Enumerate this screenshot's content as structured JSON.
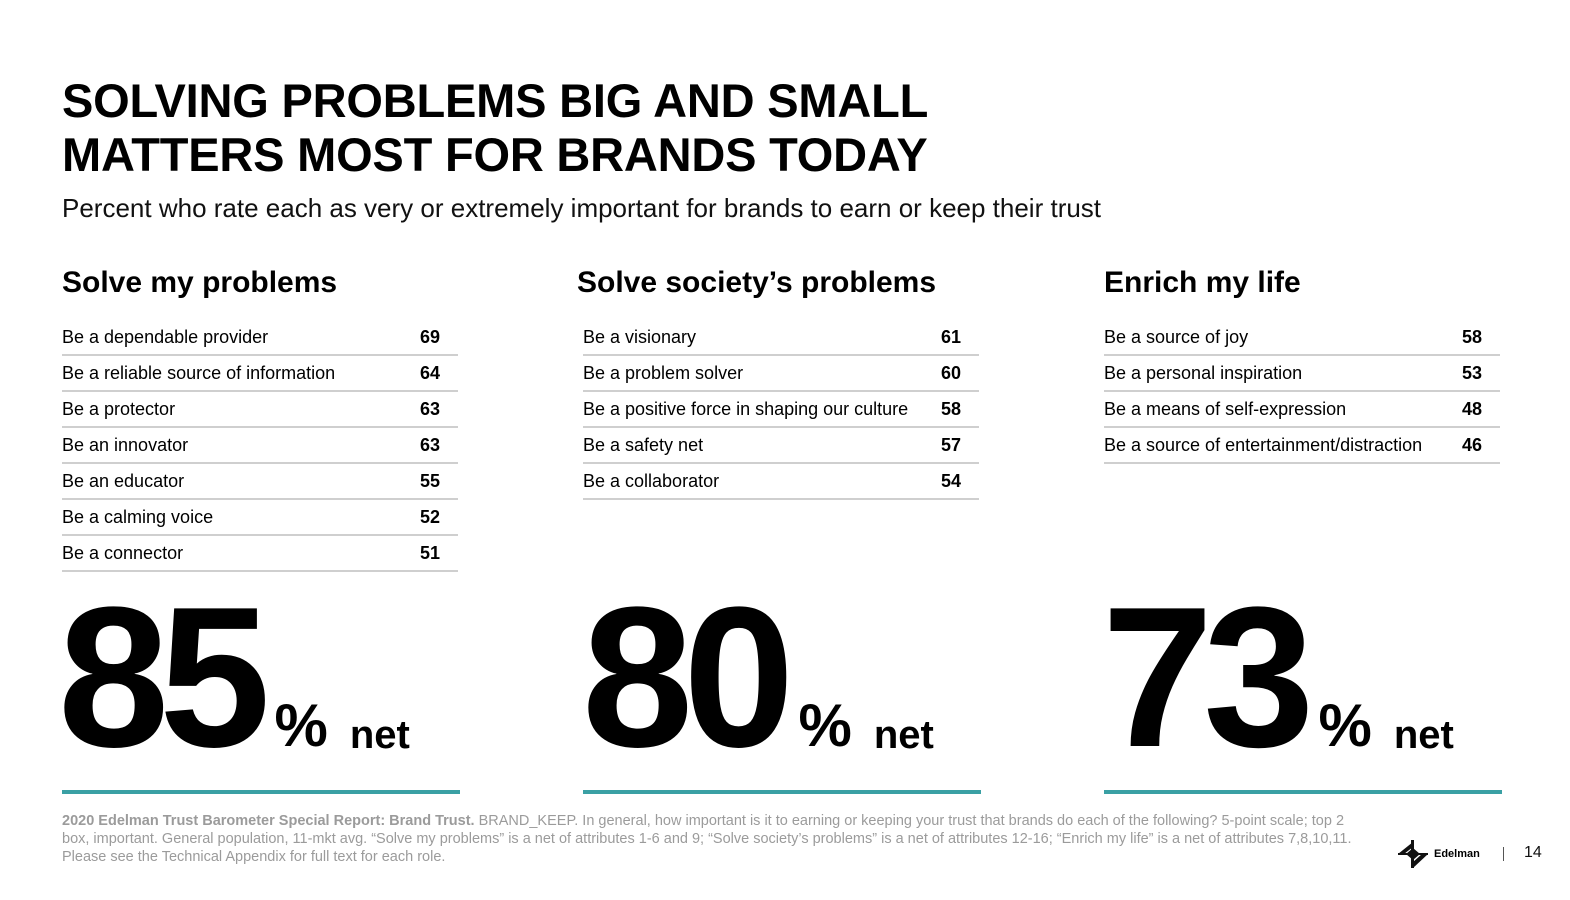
{
  "title": "SOLVING PROBLEMS BIG AND SMALL\nMATTERS MOST FOR BRANDS TODAY",
  "subtitle": "Percent who rate each as very or extremely important for brands to earn or keep their trust",
  "columns": [
    {
      "heading": "Solve my problems",
      "rows": [
        {
          "label": "Be a dependable provider",
          "value": "69"
        },
        {
          "label": "Be a reliable source of information",
          "value": "64"
        },
        {
          "label": "Be a protector",
          "value": "63"
        },
        {
          "label": "Be an innovator",
          "value": "63"
        },
        {
          "label": "Be an educator",
          "value": "55"
        },
        {
          "label": "Be a calming voice",
          "value": "52"
        },
        {
          "label": "Be a connector",
          "value": "51"
        }
      ],
      "net_value": "85",
      "percent_sign": "%",
      "net_label": "net"
    },
    {
      "heading": "Solve society’s problems",
      "rows": [
        {
          "label": "Be a visionary",
          "value": "61"
        },
        {
          "label": "Be a problem solver",
          "value": "60"
        },
        {
          "label": "Be a positive force in shaping our culture",
          "value": "58"
        },
        {
          "label": "Be a safety net",
          "value": "57"
        },
        {
          "label": "Be a collaborator",
          "value": "54"
        }
      ],
      "net_value": "80",
      "percent_sign": "%",
      "net_label": "net"
    },
    {
      "heading": "Enrich my life",
      "rows": [
        {
          "label": "Be a source of joy",
          "value": "58"
        },
        {
          "label": "Be a personal inspiration",
          "value": "53"
        },
        {
          "label": "Be a means of self-expression",
          "value": "48"
        },
        {
          "label": "Be a source of entertainment/distraction",
          "value": "46"
        }
      ],
      "net_value": "73",
      "percent_sign": "%",
      "net_label": "net"
    }
  ],
  "footnote": {
    "source": "2020 Edelman Trust Barometer Special Report: Brand Trust.",
    "text": " BRAND_KEEP. In general, how important is it to earning or keeping your trust that brands do each of the following? 5-point scale; top 2 box, important. General population, 11-mkt avg. “Solve my problems” is a net of attributes 1-6 and 9; “Solve society’s problems” is a net of attributes 12-16; “Enrich my life” is a net of attributes 7,8,10,11. Please see the Technical Appendix for full text for each role."
  },
  "logo_text": "Edelman",
  "logo_icon": "edelman-logo-icon",
  "page_number": "14",
  "colors": {
    "accent_teal": "#3aa0a4",
    "rule_gray": "#cfcfcf",
    "footnote_gray": "#9b9b9b"
  }
}
